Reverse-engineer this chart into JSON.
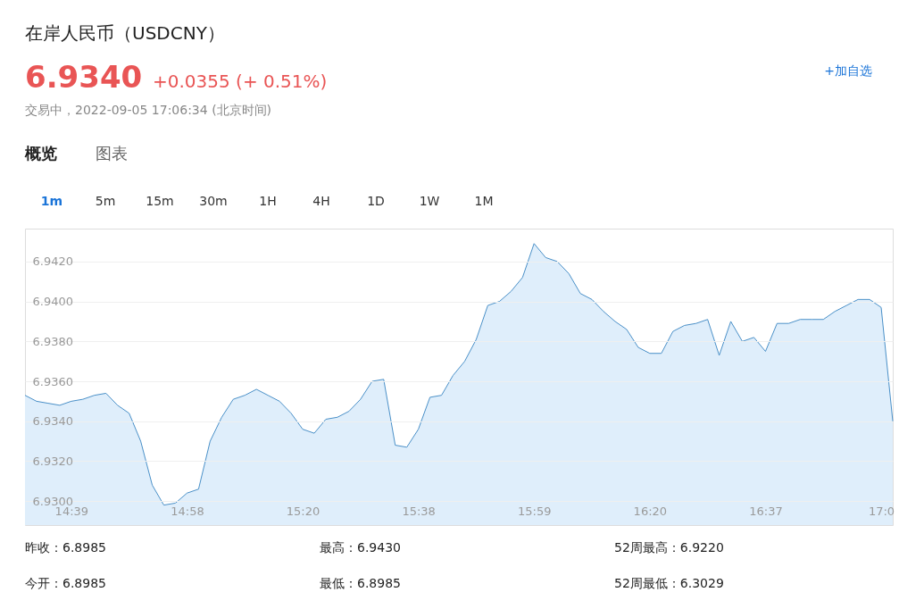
{
  "chart_data": {
    "type": "area",
    "title": "在岸人民币（USDCNY）",
    "subtitle": "交易中，2022-09-05 17:06:34 (北京时间)",
    "categories": [
      null,
      null,
      null,
      null,
      "14:39",
      null,
      null,
      null,
      null,
      null,
      null,
      null,
      null,
      null,
      "14:58",
      null,
      null,
      null,
      null,
      null,
      null,
      null,
      null,
      null,
      "15:20",
      null,
      null,
      null,
      null,
      null,
      null,
      null,
      null,
      null,
      "15:38",
      null,
      null,
      null,
      null,
      null,
      null,
      null,
      null,
      null,
      "15:59",
      null,
      null,
      null,
      null,
      null,
      null,
      null,
      null,
      null,
      "16:20",
      null,
      null,
      null,
      null,
      null,
      null,
      null,
      null,
      null,
      "16:37",
      null,
      null,
      null,
      null,
      null,
      null,
      null,
      null,
      null,
      "17:0",
      null
    ],
    "series": [
      {
        "color": "#4a90c8",
        "values": [
          6.9353,
          6.935,
          6.9349,
          6.9348,
          6.935,
          6.9351,
          6.9353,
          6.9354,
          6.9348,
          6.9344,
          6.933,
          6.9308,
          6.9298,
          6.9299,
          6.9304,
          6.9306,
          6.933,
          6.9342,
          6.9351,
          6.9353,
          6.9356,
          6.9353,
          6.935,
          6.9344,
          6.9336,
          6.9334,
          6.9341,
          6.9342,
          6.9345,
          6.9351,
          6.936,
          6.9361,
          6.9328,
          6.9327,
          6.9336,
          6.9352,
          6.9353,
          6.9363,
          6.937,
          6.9381,
          6.9398,
          6.94,
          6.9405,
          6.9412,
          6.9429,
          6.9422,
          6.942,
          6.9414,
          6.9404,
          6.9401,
          6.9395,
          6.939,
          6.9386,
          6.9377,
          6.9374,
          6.9374,
          6.9385,
          6.9388,
          6.9389,
          6.9391,
          6.9373,
          6.939,
          6.938,
          6.9382,
          6.9375,
          6.9389,
          6.9389,
          6.9391,
          6.9391,
          6.9391,
          6.9395,
          6.9398,
          6.9401,
          6.9401,
          6.9397,
          6.934
        ]
      }
    ],
    "ylim": [
      6.9288,
      6.94365
    ],
    "yticks": [
      {
        "value": 6.93,
        "label": "6.9300"
      },
      {
        "value": 6.932,
        "label": "6.9320"
      },
      {
        "value": 6.934,
        "label": "6.9340"
      },
      {
        "value": 6.936,
        "label": "6.9360"
      },
      {
        "value": 6.938,
        "label": "6.9380"
      },
      {
        "value": 6.94,
        "label": "6.9400"
      },
      {
        "value": 6.942,
        "label": "6.9420"
      }
    ],
    "grid": "y",
    "annotations": [
      "6.9340",
      "+0.0355 (+ 0.51%)",
      "+加自选",
      "概览",
      "图表",
      "1m",
      "5m",
      "15m",
      "30m",
      "1H",
      "4H",
      "1D",
      "1W",
      "1M",
      "昨收：6.8985",
      "最高：6.9430",
      "52周最高：6.9220",
      "今开：6.8985",
      "最低：6.8985",
      "52周最低：6.3029"
    ]
  }
}
